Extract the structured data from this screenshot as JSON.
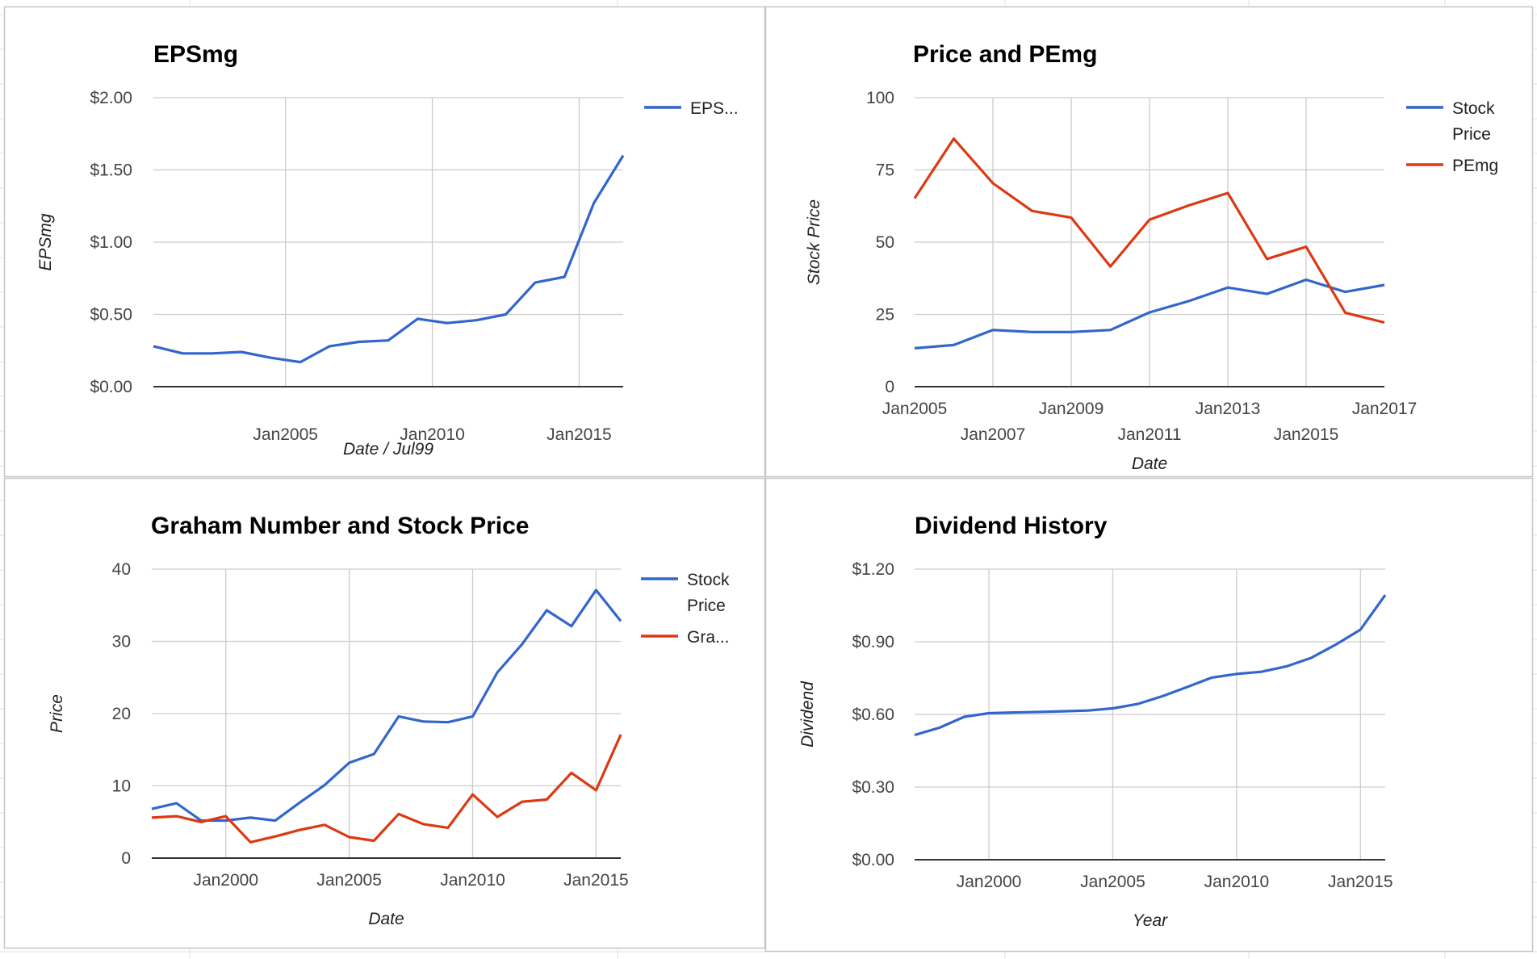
{
  "chart_data": [
    {
      "type": "line",
      "title": "EPSmg",
      "xlabel": "Date / Jul99",
      "ylabel": "EPSmg",
      "x_ticks": [
        "Jan2005",
        "Jan2010",
        "Jan2015"
      ],
      "y_ticks": [
        "$0.00",
        "$0.50",
        "$1.00",
        "$1.50",
        "$2.00"
      ],
      "ylim": [
        0,
        2
      ],
      "xlim": [
        "2000-07",
        "2016-07"
      ],
      "grid": true,
      "legend_position": "right",
      "legend": [
        "EPS..."
      ],
      "series": [
        {
          "name": "EPS...",
          "color": "#3366cc",
          "x": [
            "2000-07",
            "2001-07",
            "2002-07",
            "2003-07",
            "2004-07",
            "2005-07",
            "2006-07",
            "2007-07",
            "2008-07",
            "2009-07",
            "2010-07",
            "2011-07",
            "2012-07",
            "2013-07",
            "2014-07",
            "2015-07",
            "2016-07"
          ],
          "values": [
            0.28,
            0.23,
            0.23,
            0.24,
            0.2,
            0.17,
            0.28,
            0.31,
            0.32,
            0.47,
            0.44,
            0.46,
            0.5,
            0.72,
            0.76,
            1.27,
            1.6
          ]
        }
      ]
    },
    {
      "type": "line",
      "title": "Price and PEmg",
      "xlabel": "Date",
      "ylabel": "Stock Price",
      "x_ticks": [
        "Jan2005",
        "Jan2007",
        "Jan2009",
        "Jan2011",
        "Jan2013",
        "Jan2015",
        "Jan2017"
      ],
      "y_ticks": [
        "0",
        "25",
        "50",
        "75",
        "100"
      ],
      "ylim": [
        0,
        100
      ],
      "xlim": [
        "2005-01",
        "2017-01"
      ],
      "grid": true,
      "legend_position": "right",
      "legend": [
        "Stock Price",
        "PEmg"
      ],
      "series": [
        {
          "name": "Stock Price",
          "color": "#3366cc",
          "x": [
            "2005-01",
            "2006-01",
            "2007-01",
            "2008-01",
            "2009-01",
            "2010-01",
            "2011-01",
            "2012-01",
            "2013-01",
            "2014-01",
            "2015-01",
            "2016-01",
            "2017-01"
          ],
          "values": [
            13.3,
            14.4,
            19.6,
            18.9,
            18.9,
            19.6,
            25.7,
            29.6,
            34.3,
            32.1,
            37.0,
            32.8,
            35.2
          ]
        },
        {
          "name": "PEmg",
          "color": "#dc3912",
          "x": [
            "2005-01",
            "2006-01",
            "2007-01",
            "2008-01",
            "2009-01",
            "2010-01",
            "2011-01",
            "2012-01",
            "2013-01",
            "2014-01",
            "2015-01",
            "2016-01",
            "2017-01"
          ],
          "values": [
            65.2,
            85.8,
            70.4,
            60.8,
            58.5,
            41.6,
            57.8,
            62.7,
            67.0,
            44.2,
            48.4,
            25.6,
            22.2
          ]
        }
      ]
    },
    {
      "type": "line",
      "title": "Graham Number and Stock Price",
      "xlabel": "Date",
      "ylabel": "Price",
      "x_ticks": [
        "Jan2000",
        "Jan2005",
        "Jan2010",
        "Jan2015"
      ],
      "y_ticks": [
        "0",
        "10",
        "20",
        "30",
        "40"
      ],
      "ylim": [
        0,
        40
      ],
      "xlim": [
        "1997-01",
        "2016-01"
      ],
      "grid": true,
      "legend_position": "right",
      "legend": [
        "Stock Price",
        "Gra..."
      ],
      "series": [
        {
          "name": "Stock Price",
          "color": "#3366cc",
          "x": [
            "1997-01",
            "1998-01",
            "1999-01",
            "2000-01",
            "2001-01",
            "2002-01",
            "2003-01",
            "2004-01",
            "2005-01",
            "2006-01",
            "2007-01",
            "2008-01",
            "2009-01",
            "2010-01",
            "2011-01",
            "2012-01",
            "2013-01",
            "2014-01",
            "2015-01",
            "2016-01"
          ],
          "values": [
            6.8,
            7.6,
            5.2,
            5.2,
            5.6,
            5.2,
            7.7,
            10.1,
            13.2,
            14.4,
            19.6,
            18.9,
            18.8,
            19.6,
            25.7,
            29.6,
            34.3,
            32.1,
            37.1,
            32.8
          ]
        },
        {
          "name": "Gra...",
          "color": "#dc3912",
          "x": [
            "1997-01",
            "1998-01",
            "1999-01",
            "2000-01",
            "2001-01",
            "2002-01",
            "2003-01",
            "2004-01",
            "2005-01",
            "2006-01",
            "2007-01",
            "2008-01",
            "2009-01",
            "2010-01",
            "2011-01",
            "2012-01",
            "2013-01",
            "2014-01",
            "2015-01",
            "2016-01"
          ],
          "values": [
            5.6,
            5.8,
            5.0,
            5.8,
            2.2,
            3.0,
            3.9,
            4.6,
            2.9,
            2.4,
            6.1,
            4.7,
            4.2,
            8.8,
            5.7,
            7.8,
            8.1,
            11.8,
            9.4,
            17.1
          ]
        }
      ]
    },
    {
      "type": "line",
      "title": "Dividend History",
      "xlabel": "Year",
      "ylabel": "Dividend",
      "x_ticks": [
        "Jan2000",
        "Jan2005",
        "Jan2010",
        "Jan2015"
      ],
      "y_ticks": [
        "$0.00",
        "$0.30",
        "$0.60",
        "$0.90",
        "$1.20"
      ],
      "ylim": [
        0,
        1.2
      ],
      "xlim": [
        "1997-01",
        "2016-01"
      ],
      "grid": true,
      "legend_position": "none",
      "legend": [],
      "series": [
        {
          "name": "",
          "color": "#3366cc",
          "x": [
            "1997-01",
            "1998-01",
            "1999-01",
            "2000-01",
            "2001-01",
            "2002-01",
            "2003-01",
            "2004-01",
            "2005-01",
            "2006-01",
            "2007-01",
            "2008-01",
            "2009-01",
            "2010-01",
            "2011-01",
            "2012-01",
            "2013-01",
            "2014-01",
            "2015-01",
            "2016-01"
          ],
          "values": [
            0.515,
            0.545,
            0.59,
            0.605,
            0.608,
            0.61,
            0.613,
            0.616,
            0.625,
            0.643,
            0.675,
            0.713,
            0.752,
            0.767,
            0.776,
            0.798,
            0.833,
            0.888,
            0.95,
            1.093
          ]
        }
      ]
    }
  ]
}
